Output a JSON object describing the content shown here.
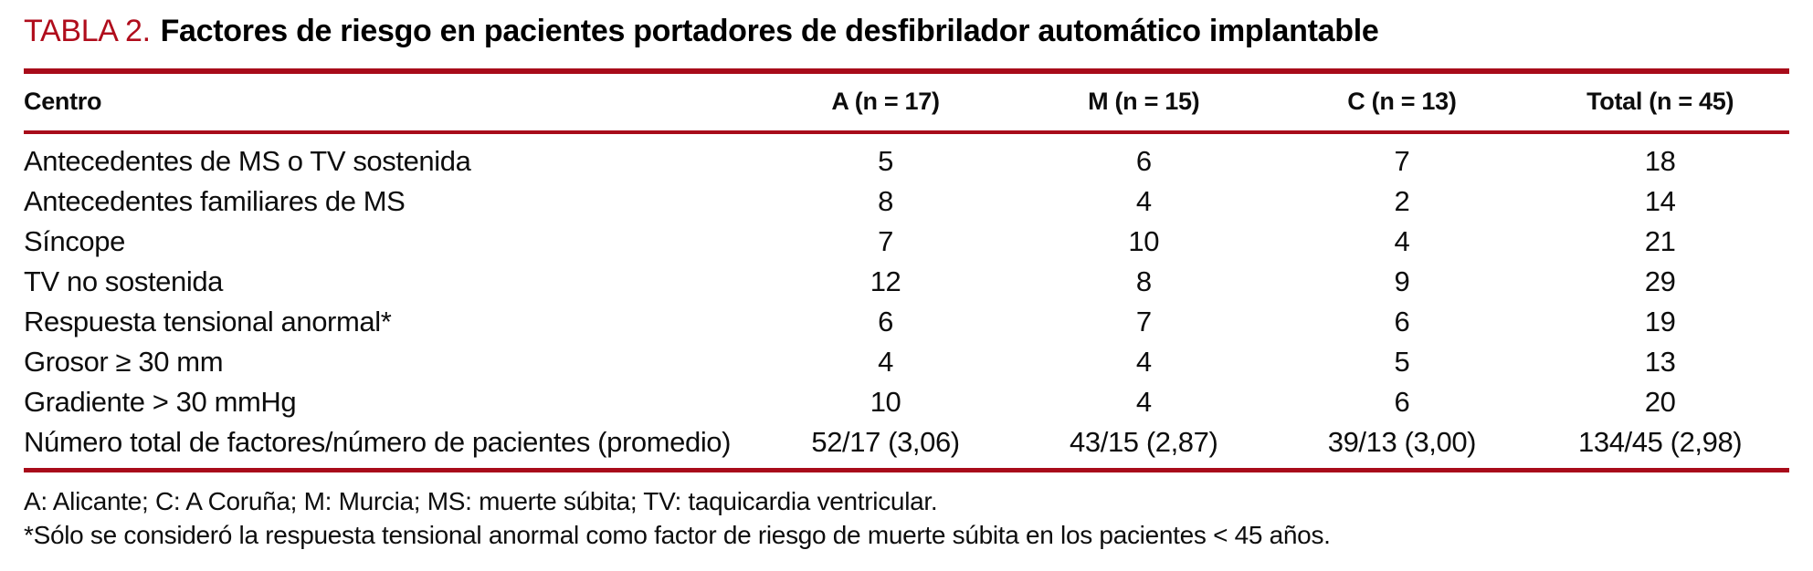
{
  "title": {
    "label": "TABLA 2.",
    "text": "Factores de riesgo en pacientes portadores de desfibrilador automático implantable"
  },
  "colors": {
    "accent_red": "#a80b1a",
    "title_red": "#b00d1c",
    "text": "#000000"
  },
  "table": {
    "columns": [
      "Centro",
      "A (n = 17)",
      "M (n = 15)",
      "C (n = 13)",
      "Total (n = 45)"
    ],
    "rows": [
      {
        "label": "Antecedentes de MS o TV sostenida",
        "values": [
          "5",
          "6",
          "7",
          "18"
        ]
      },
      {
        "label": "Antecedentes familiares de MS",
        "values": [
          "8",
          "4",
          "2",
          "14"
        ]
      },
      {
        "label": "Síncope",
        "values": [
          "7",
          "10",
          "4",
          "21"
        ]
      },
      {
        "label": "TV no sostenida",
        "values": [
          "12",
          "8",
          "9",
          "29"
        ]
      },
      {
        "label": "Respuesta tensional anormal*",
        "values": [
          "6",
          "7",
          "6",
          "19"
        ]
      },
      {
        "label": "Grosor ≥ 30 mm",
        "values": [
          "4",
          "4",
          "5",
          "13"
        ]
      },
      {
        "label": "Gradiente > 30 mmHg",
        "values": [
          "10",
          "4",
          "6",
          "20"
        ]
      },
      {
        "label": "Número total de factores/número de pacientes (promedio)",
        "values": [
          "52/17 (3,06)",
          "43/15 (2,87)",
          "39/13 (3,00)",
          "134/45 (2,98)"
        ]
      }
    ]
  },
  "footnotes": [
    "A: Alicante; C: A Coruña; M: Murcia; MS: muerte súbita; TV: taquicardia ventricular.",
    "*Sólo se consideró la respuesta tensional anormal como factor de riesgo de muerte súbita en los pacientes < 45 años."
  ]
}
